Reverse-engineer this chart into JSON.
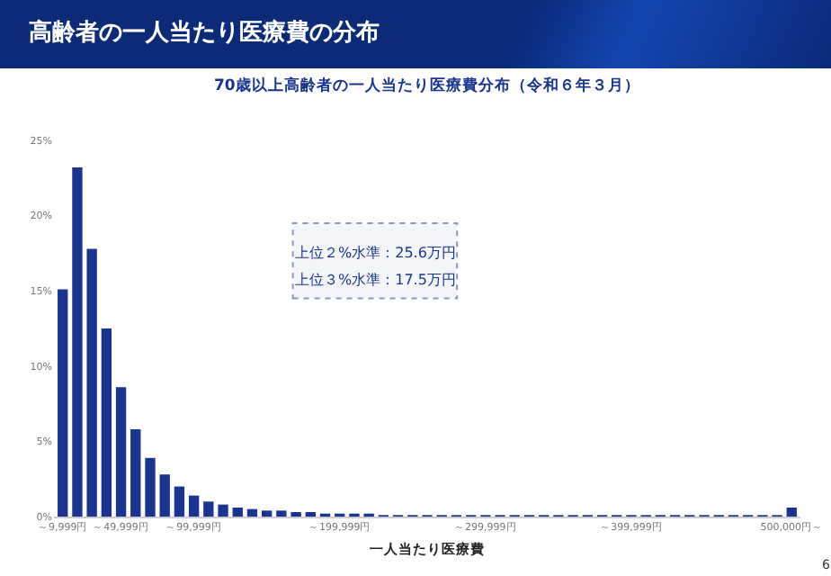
{
  "chart_data": {
    "type": "bar",
    "title": "高齢者の一人当たり医療費の分布",
    "subtitle": "70歳以上高齢者の一人当たり医療費分布（令和６年３月）",
    "xlabel": "一人当たり医療費",
    "categories": [
      "～9,999円",
      null,
      null,
      null,
      "～49,999円",
      null,
      null,
      null,
      null,
      "～99,999円",
      null,
      null,
      null,
      null,
      null,
      null,
      null,
      null,
      null,
      "～199,999円",
      null,
      null,
      null,
      null,
      null,
      null,
      null,
      null,
      null,
      "～299,999円",
      null,
      null,
      null,
      null,
      null,
      null,
      null,
      null,
      null,
      "～399,999円",
      null,
      null,
      null,
      null,
      null,
      null,
      null,
      null,
      null,
      null,
      "500,000円～"
    ],
    "values": [
      15.1,
      23.2,
      17.8,
      12.5,
      8.6,
      5.8,
      3.9,
      2.8,
      2.0,
      1.4,
      1.0,
      0.8,
      0.6,
      0.5,
      0.4,
      0.4,
      0.3,
      0.3,
      0.2,
      0.2,
      0.2,
      0.2,
      0.1,
      0.1,
      0.1,
      0.1,
      0.1,
      0.1,
      0.1,
      0.1,
      0.1,
      0.1,
      0.1,
      0.1,
      0.1,
      0.1,
      0.1,
      0.1,
      0.1,
      0.1,
      0.1,
      0.1,
      0.1,
      0.1,
      0.1,
      0.1,
      0.1,
      0.1,
      0.1,
      0.1,
      0.6
    ],
    "color": "#1a3591",
    "ylim": [
      0,
      25
    ],
    "yticks": [
      {
        "value": 0,
        "label": "0%"
      },
      {
        "value": 5,
        "label": "5%"
      },
      {
        "value": 10,
        "label": "10%"
      },
      {
        "value": 15,
        "label": "15%"
      },
      {
        "value": 20,
        "label": "20%"
      },
      {
        "value": 25,
        "label": "25%"
      }
    ],
    "annotations": [
      "上位２%水準：25.6万円",
      "上位３%水準：17.5万円",
      "6"
    ]
  }
}
